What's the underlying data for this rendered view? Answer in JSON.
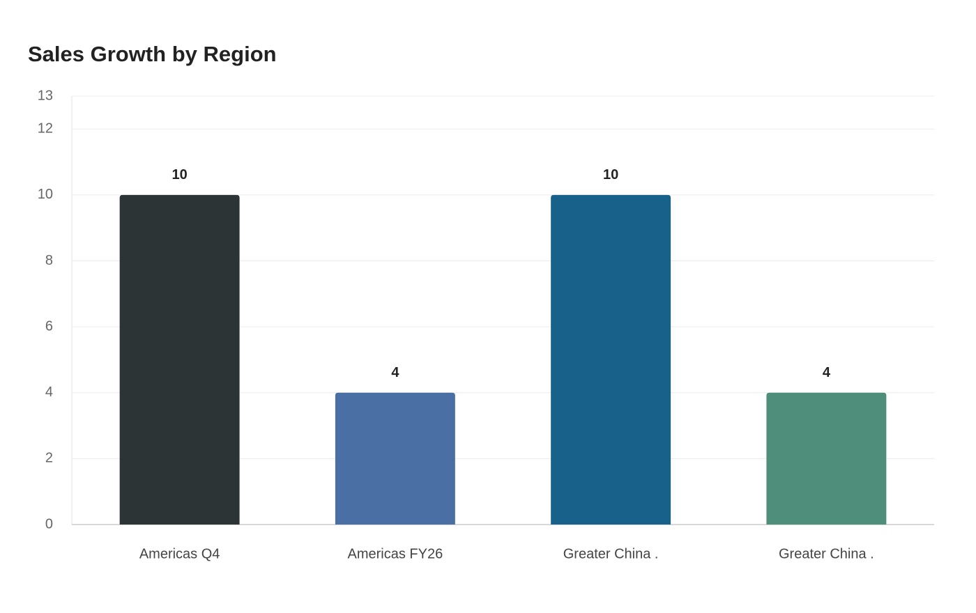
{
  "chart_data": {
    "type": "bar",
    "title": "Sales Growth by Region",
    "categories": [
      "Americas Q4",
      "Americas FY26",
      "Greater China .",
      "Greater China ."
    ],
    "values": [
      10,
      4,
      10,
      4
    ],
    "colors": [
      "#2d3436",
      "#4a6fa5",
      "#17618a",
      "#4e8e7a"
    ],
    "ylim": [
      0,
      13
    ],
    "yticks": [
      0,
      2,
      4,
      6,
      8,
      10,
      12,
      13
    ],
    "grid": true
  }
}
